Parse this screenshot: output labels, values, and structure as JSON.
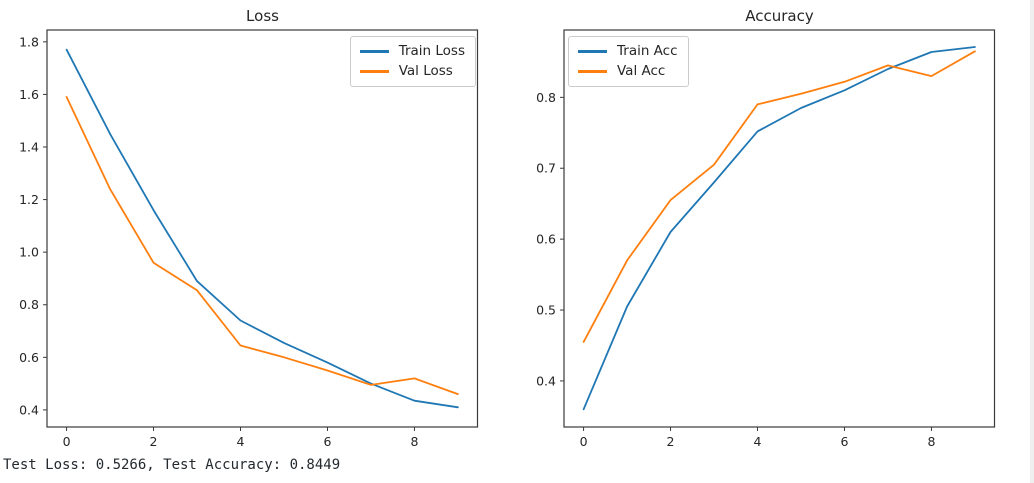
{
  "figure": {
    "status_text": "Test Loss: 0.5266, Test Accuracy: 0.8449"
  },
  "colors": {
    "train_series": "#1f77b4",
    "val_series": "#ff7f0e",
    "spine": "#3a3a3a",
    "tick_text": "#262626",
    "legend_border": "#cccccc",
    "status_text": "#24292e"
  },
  "chart_data": [
    {
      "type": "line",
      "title": "Loss",
      "xlabel": "",
      "ylabel": "",
      "grid": false,
      "legend_position": "upper-right",
      "x": [
        0,
        1,
        2,
        3,
        4,
        5,
        6,
        7,
        8,
        9
      ],
      "series": [
        {
          "name": "Train Loss",
          "color": "#1f77b4",
          "values": [
            1.77,
            1.45,
            1.16,
            0.89,
            0.74,
            0.655,
            0.58,
            0.5,
            0.435,
            0.41
          ]
        },
        {
          "name": "Val Loss",
          "color": "#ff7f0e",
          "values": [
            1.59,
            1.24,
            0.96,
            0.855,
            0.645,
            0.6,
            0.55,
            0.495,
            0.52,
            0.46
          ]
        }
      ],
      "xlim": [
        -0.45,
        9.45
      ],
      "ylim": [
        0.335,
        1.845
      ],
      "xticks": [
        0,
        2,
        4,
        6,
        8
      ],
      "xtick_labels": [
        "0",
        "2",
        "4",
        "6",
        "8"
      ],
      "yticks": [
        0.4,
        0.6,
        0.8,
        1.0,
        1.2,
        1.4,
        1.6,
        1.8
      ],
      "ytick_labels": [
        "0.4",
        "0.6",
        "0.8",
        "1.0",
        "1.2",
        "1.4",
        "1.6",
        "1.8"
      ]
    },
    {
      "type": "line",
      "title": "Accuracy",
      "xlabel": "",
      "ylabel": "",
      "grid": false,
      "legend_position": "upper-left",
      "x": [
        0,
        1,
        2,
        3,
        4,
        5,
        6,
        7,
        8,
        9
      ],
      "series": [
        {
          "name": "Train Acc",
          "color": "#1f77b4",
          "values": [
            0.36,
            0.505,
            0.61,
            0.68,
            0.752,
            0.785,
            0.81,
            0.84,
            0.864,
            0.871
          ]
        },
        {
          "name": "Val Acc",
          "color": "#ff7f0e",
          "values": [
            0.455,
            0.57,
            0.655,
            0.705,
            0.79,
            0.805,
            0.822,
            0.845,
            0.83,
            0.865
          ]
        }
      ],
      "xlim": [
        -0.45,
        9.45
      ],
      "ylim": [
        0.335,
        0.895
      ],
      "xticks": [
        0,
        2,
        4,
        6,
        8
      ],
      "xtick_labels": [
        "0",
        "2",
        "4",
        "6",
        "8"
      ],
      "yticks": [
        0.4,
        0.5,
        0.6,
        0.7,
        0.8
      ],
      "ytick_labels": [
        "0.4",
        "0.5",
        "0.6",
        "0.7",
        "0.8"
      ]
    }
  ]
}
